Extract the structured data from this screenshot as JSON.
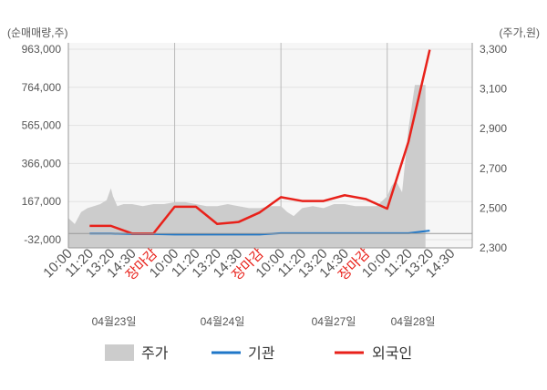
{
  "chart_data": {
    "type": "line",
    "left_axis_unit": "(순매매량,주)",
    "right_axis_unit": "(주가,원)",
    "left_ticks": [
      "963,000",
      "764,000",
      "565,000",
      "366,000",
      "167,000",
      "-32,000"
    ],
    "left_tick_values": [
      963000,
      764000,
      565000,
      366000,
      167000,
      -32000
    ],
    "right_ticks": [
      "3,300",
      "3,100",
      "2,900",
      "2,700",
      "2,500",
      "2,300"
    ],
    "right_tick_values": [
      3300,
      3100,
      2900,
      2700,
      2500,
      2300
    ],
    "ylim_left": [
      -32000,
      963000
    ],
    "ylim_right": [
      2300,
      3300
    ],
    "x_tick_labels": [
      "10:00",
      "11:20",
      "13:20",
      "14:30",
      "장마감",
      "10:00",
      "11:20",
      "13:20",
      "14:30",
      "장마감",
      "10:00",
      "11:20",
      "13:20",
      "14:30",
      "장마감",
      "10:00",
      "11:20",
      "13:20",
      "14:30"
    ],
    "x_tick_red": [
      false,
      false,
      false,
      false,
      true,
      false,
      false,
      false,
      false,
      true,
      false,
      false,
      false,
      false,
      true,
      false,
      false,
      false,
      false
    ],
    "date_labels": [
      "04월23일",
      "04월24일",
      "04월27일",
      "04월28일"
    ],
    "grid": true,
    "legend_position": "bottom",
    "series": [
      {
        "name": "주가",
        "kind": "area",
        "axis": "right",
        "color": "#cccccc",
        "x": [
          0,
          0.3,
          0.6,
          0.9,
          1.2,
          1.5,
          1.8,
          2.0,
          2.1,
          2.3,
          2.6,
          3.0,
          3.5,
          4.0,
          4.5,
          5.0,
          5.5,
          6.0,
          6.5,
          7.0,
          7.5,
          8.0,
          8.5,
          9.0,
          9.5,
          10.0,
          10.3,
          10.6,
          11.0,
          11.5,
          12.0,
          12.5,
          13.0,
          13.5,
          14.0,
          14.5,
          15.0,
          15.2,
          15.4,
          15.7,
          16.0,
          16.3,
          16.6,
          16.8
        ],
        "y": [
          2450,
          2420,
          2480,
          2500,
          2510,
          2520,
          2540,
          2600,
          2560,
          2510,
          2520,
          2520,
          2510,
          2520,
          2520,
          2530,
          2530,
          2520,
          2510,
          2510,
          2520,
          2510,
          2500,
          2500,
          2510,
          2510,
          2480,
          2460,
          2500,
          2510,
          2500,
          2520,
          2520,
          2510,
          2510,
          2510,
          2560,
          2610,
          2640,
          2580,
          2900,
          3120,
          3120,
          3120
        ]
      },
      {
        "name": "기관",
        "kind": "line",
        "axis": "left",
        "color": "#1f77c8",
        "x": [
          1,
          2,
          3,
          4,
          5,
          6,
          7,
          8,
          9,
          10,
          11,
          12,
          13,
          14,
          15,
          16,
          17
        ],
        "y": [
          0,
          0,
          -3000,
          -3000,
          -5000,
          -5000,
          -5000,
          -5000,
          -5000,
          2000,
          2000,
          2000,
          2000,
          2000,
          2000,
          2000,
          15000
        ]
      },
      {
        "name": "외국인",
        "kind": "line",
        "axis": "left",
        "color": "#e8211a",
        "x": [
          1,
          2,
          3,
          4,
          5,
          6,
          7,
          8,
          9,
          10,
          11,
          12,
          13,
          14,
          15,
          16,
          17
        ],
        "y": [
          40000,
          40000,
          0,
          0,
          140000,
          140000,
          50000,
          60000,
          110000,
          190000,
          170000,
          170000,
          200000,
          180000,
          130000,
          480000,
          960000
        ]
      }
    ]
  }
}
